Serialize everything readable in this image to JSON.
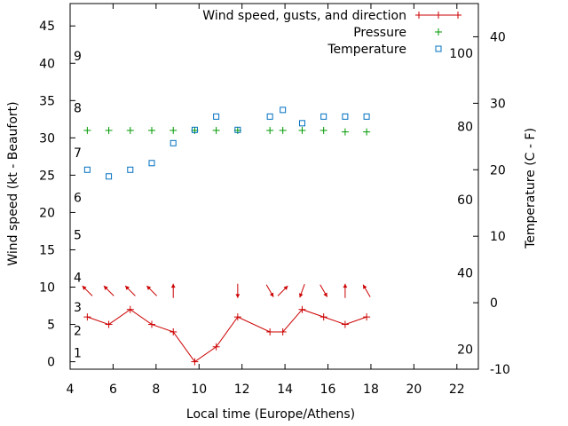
{
  "chart_data": {
    "type": "line",
    "xlabel": "Local time (Europe/Athens)",
    "ylabel_left": "Wind speed (kt - Beaufort)",
    "ylabel_right": "Temperature (C - F)",
    "xlim": [
      4,
      23
    ],
    "ylim_left": [
      -1,
      48
    ],
    "ylim_right": [
      -10,
      45
    ],
    "x_ticks": [
      "4",
      "6",
      "8",
      "10",
      "12",
      "14",
      "16",
      "18",
      "20",
      "22"
    ],
    "y_left_ticks": [
      "0",
      "5",
      "10",
      "15",
      "20",
      "25",
      "30",
      "35",
      "40",
      "45"
    ],
    "y_right_ticks": [
      "-10",
      "0",
      "10",
      "20",
      "30",
      "40"
    ],
    "beaufort_labels": [
      {
        "value": 1,
        "kt": 1.2
      },
      {
        "value": 2,
        "kt": 4.2
      },
      {
        "value": 3,
        "kt": 7.3
      },
      {
        "value": 4,
        "kt": 11.3
      },
      {
        "value": 5,
        "kt": 17.0
      },
      {
        "value": 6,
        "kt": 22.0
      },
      {
        "value": 7,
        "kt": 28.0
      },
      {
        "value": 8,
        "kt": 34.0
      },
      {
        "value": 9,
        "kt": 41.0
      }
    ],
    "fahrenheit_labels": [
      {
        "value": 20,
        "c": -7
      },
      {
        "value": 40,
        "c": 4.5
      },
      {
        "value": 60,
        "c": 15.5
      },
      {
        "value": 80,
        "c": 26.5
      },
      {
        "value": 100,
        "c": 37.5
      }
    ],
    "legend": {
      "position": "top-right",
      "entries": [
        "Wind speed, gusts, and direction",
        "Pressure",
        "Temperature"
      ]
    },
    "series": [
      {
        "name": "Wind speed, gusts, and direction",
        "color": "#cc0000",
        "marker": "+",
        "axis": "left",
        "x": [
          4.8,
          5.8,
          6.8,
          7.8,
          8.8,
          9.8,
          10.8,
          11.8,
          13.3,
          13.9,
          14.8,
          15.8,
          16.8,
          17.8
        ],
        "values": [
          6,
          5,
          7,
          5,
          4,
          0,
          2,
          6,
          4,
          4,
          7,
          6,
          5,
          6
        ]
      },
      {
        "name": "Pressure",
        "color": "#009900",
        "marker": "+",
        "axis": "left",
        "x": [
          4.8,
          5.8,
          6.8,
          7.8,
          8.8,
          9.8,
          10.8,
          11.8,
          13.3,
          13.9,
          14.8,
          15.8,
          16.8,
          17.8
        ],
        "values": [
          31,
          31,
          31,
          31,
          31,
          31,
          31,
          31,
          31,
          31,
          31,
          31,
          30.8,
          30.8
        ]
      },
      {
        "name": "Temperature",
        "color": "#0070c0",
        "marker": "square",
        "axis": "right",
        "x": [
          4.8,
          5.8,
          6.8,
          7.8,
          8.8,
          9.8,
          10.8,
          11.8,
          13.3,
          13.9,
          14.8,
          15.8,
          16.8,
          17.8
        ],
        "values": [
          20,
          19,
          20,
          21,
          24,
          26,
          28,
          26,
          28,
          29,
          27,
          28,
          28,
          28
        ]
      }
    ],
    "wind_direction_arrows": {
      "color": "#cc0000",
      "kt_position": 9.5,
      "x": [
        4.8,
        5.8,
        6.8,
        7.8,
        8.8,
        11.8,
        13.3,
        13.9,
        14.8,
        15.8,
        16.8,
        17.8
      ],
      "bearing_deg": [
        315,
        315,
        315,
        315,
        0,
        180,
        150,
        45,
        200,
        150,
        0,
        330
      ]
    }
  }
}
